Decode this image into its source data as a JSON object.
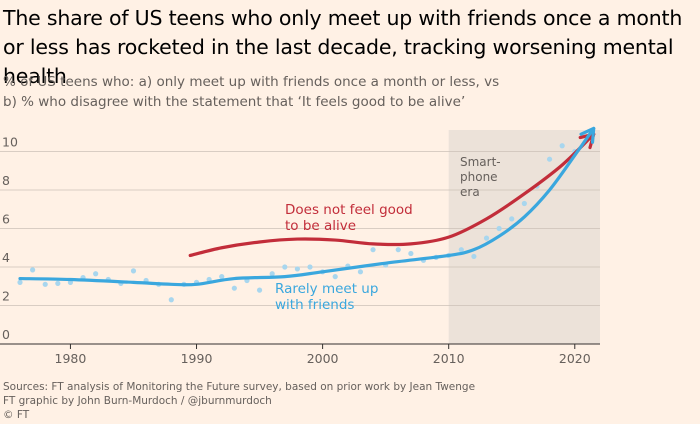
{
  "title": "The share of US teens who only meet up with friends once a month or less has rocketed in the last decade, tracking worsening mental health",
  "subtitle_line1": "% of US teens who: a) only meet up with friends once a month or less, vs",
  "subtitle_line2": "b) % who disagree with the statement that ‘It feels good to be alive’",
  "footer": {
    "source": "Sources: FT analysis of Monitoring the Future survey, based on prior work by Jean Twenge",
    "credit": "FT graphic by John Burn-Murdoch / @jburnmurdoch",
    "copyright": "© FT"
  },
  "colors": {
    "background": "#fff1e5",
    "shade": "#ece2d9",
    "blue": "#3aa7de",
    "dots": "#a8d6ee",
    "red": "#c22d3a"
  },
  "chart_data": {
    "type": "line",
    "xlim": [
      1976,
      2022
    ],
    "ylim": [
      0,
      11
    ],
    "x_ticks": [
      1980,
      1990,
      2000,
      2010,
      2020
    ],
    "y_ticks": [
      0,
      2,
      4,
      6,
      8,
      10
    ],
    "grid": true,
    "shaded_region": {
      "x": [
        2010,
        2022
      ],
      "label_lines": [
        "Smart-",
        "phone",
        "era"
      ]
    },
    "series": [
      {
        "name": "Rarely meet up with friends",
        "label_lines": [
          "Rarely meet up",
          "with friends"
        ],
        "color": "#3aa7de",
        "x": [
          1976,
          1980,
          1985,
          1988,
          1990,
          1993,
          1997,
          2000,
          2005,
          2010,
          2012,
          2014,
          2016,
          2018,
          2020,
          2021.5
        ],
        "y": [
          3.4,
          3.35,
          3.2,
          3.1,
          3.1,
          3.4,
          3.5,
          3.75,
          4.2,
          4.6,
          4.9,
          5.6,
          6.6,
          8.0,
          9.8,
          11.2
        ]
      },
      {
        "name": "Does not feel good to be alive",
        "label_lines": [
          "Does not feel good",
          "to be alive"
        ],
        "color": "#c22d3a",
        "x": [
          1989.5,
          1992,
          1995,
          1998,
          2001,
          2004,
          2007,
          2010,
          2013,
          2016,
          2019,
          2021.5
        ],
        "y": [
          4.6,
          5.0,
          5.3,
          5.45,
          5.4,
          5.2,
          5.2,
          5.55,
          6.5,
          7.8,
          9.3,
          10.9
        ]
      },
      {
        "name": "Rarely meet up with friends (annual values)",
        "type": "scatter",
        "color": "#a8d6ee",
        "x": [
          1976,
          1977,
          1978,
          1979,
          1980,
          1981,
          1982,
          1983,
          1984,
          1985,
          1986,
          1987,
          1988,
          1989,
          1990,
          1991,
          1992,
          1993,
          1994,
          1995,
          1996,
          1997,
          1998,
          1999,
          2000,
          2001,
          2002,
          2003,
          2004,
          2005,
          2006,
          2007,
          2008,
          2009,
          2010,
          2011,
          2012,
          2013,
          2014,
          2015,
          2016,
          2017,
          2018,
          2019,
          2020
        ],
        "y": [
          3.2,
          3.85,
          3.1,
          3.15,
          3.2,
          3.45,
          3.65,
          3.35,
          3.15,
          3.8,
          3.3,
          3.1,
          2.3,
          3.1,
          3.2,
          3.35,
          3.5,
          2.9,
          3.3,
          2.8,
          3.65,
          4.0,
          3.9,
          4.0,
          3.75,
          3.5,
          4.05,
          3.75,
          4.9,
          4.1,
          4.9,
          4.7,
          4.35,
          4.5,
          4.6,
          4.9,
          4.55,
          5.5,
          6.0,
          6.5,
          7.3,
          8.2,
          9.6,
          10.3,
          10.0
        ]
      }
    ]
  }
}
